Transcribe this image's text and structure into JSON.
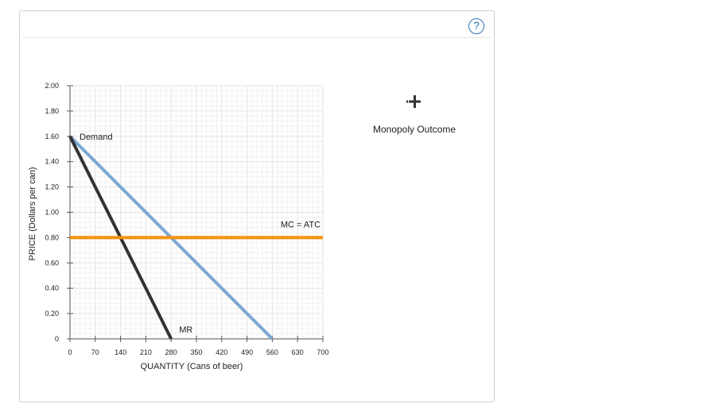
{
  "help": {
    "label": "?"
  },
  "palette": {
    "tool_icon": "crosshair-plus-icon",
    "label": "Monopoly Outcome"
  },
  "chart_data": {
    "type": "line",
    "xlabel": "QUANTITY (Cans of beer)",
    "ylabel": "PRICE (Dollars per can)",
    "xlim": [
      0,
      700
    ],
    "ylim": [
      0,
      2.0
    ],
    "x_ticks": [
      0,
      70,
      140,
      210,
      280,
      350,
      420,
      490,
      560,
      630,
      700
    ],
    "y_ticks": [
      0,
      0.2,
      0.4,
      0.6,
      0.8,
      1.0,
      1.2,
      1.4,
      1.6,
      1.8,
      2.0
    ],
    "x_tick_labels": [
      "0",
      "70",
      "140",
      "210",
      "280",
      "350",
      "420",
      "490",
      "560",
      "630",
      "700"
    ],
    "y_tick_labels": [
      "0",
      "0.20",
      "0.40",
      "0.60",
      "0.80",
      "1.00",
      "1.20",
      "1.40",
      "1.60",
      "1.80",
      "2.00"
    ],
    "grid": true,
    "series": [
      {
        "name": "Demand",
        "color": "#7ba7d4",
        "points": [
          [
            0,
            1.6
          ],
          [
            560,
            0
          ]
        ]
      },
      {
        "name": "MR",
        "color": "#333333",
        "points": [
          [
            0,
            1.6
          ],
          [
            280,
            0
          ]
        ]
      },
      {
        "name": "MC = ATC",
        "color": "#f39200",
        "points": [
          [
            0,
            0.8
          ],
          [
            700,
            0.8
          ]
        ]
      }
    ]
  }
}
